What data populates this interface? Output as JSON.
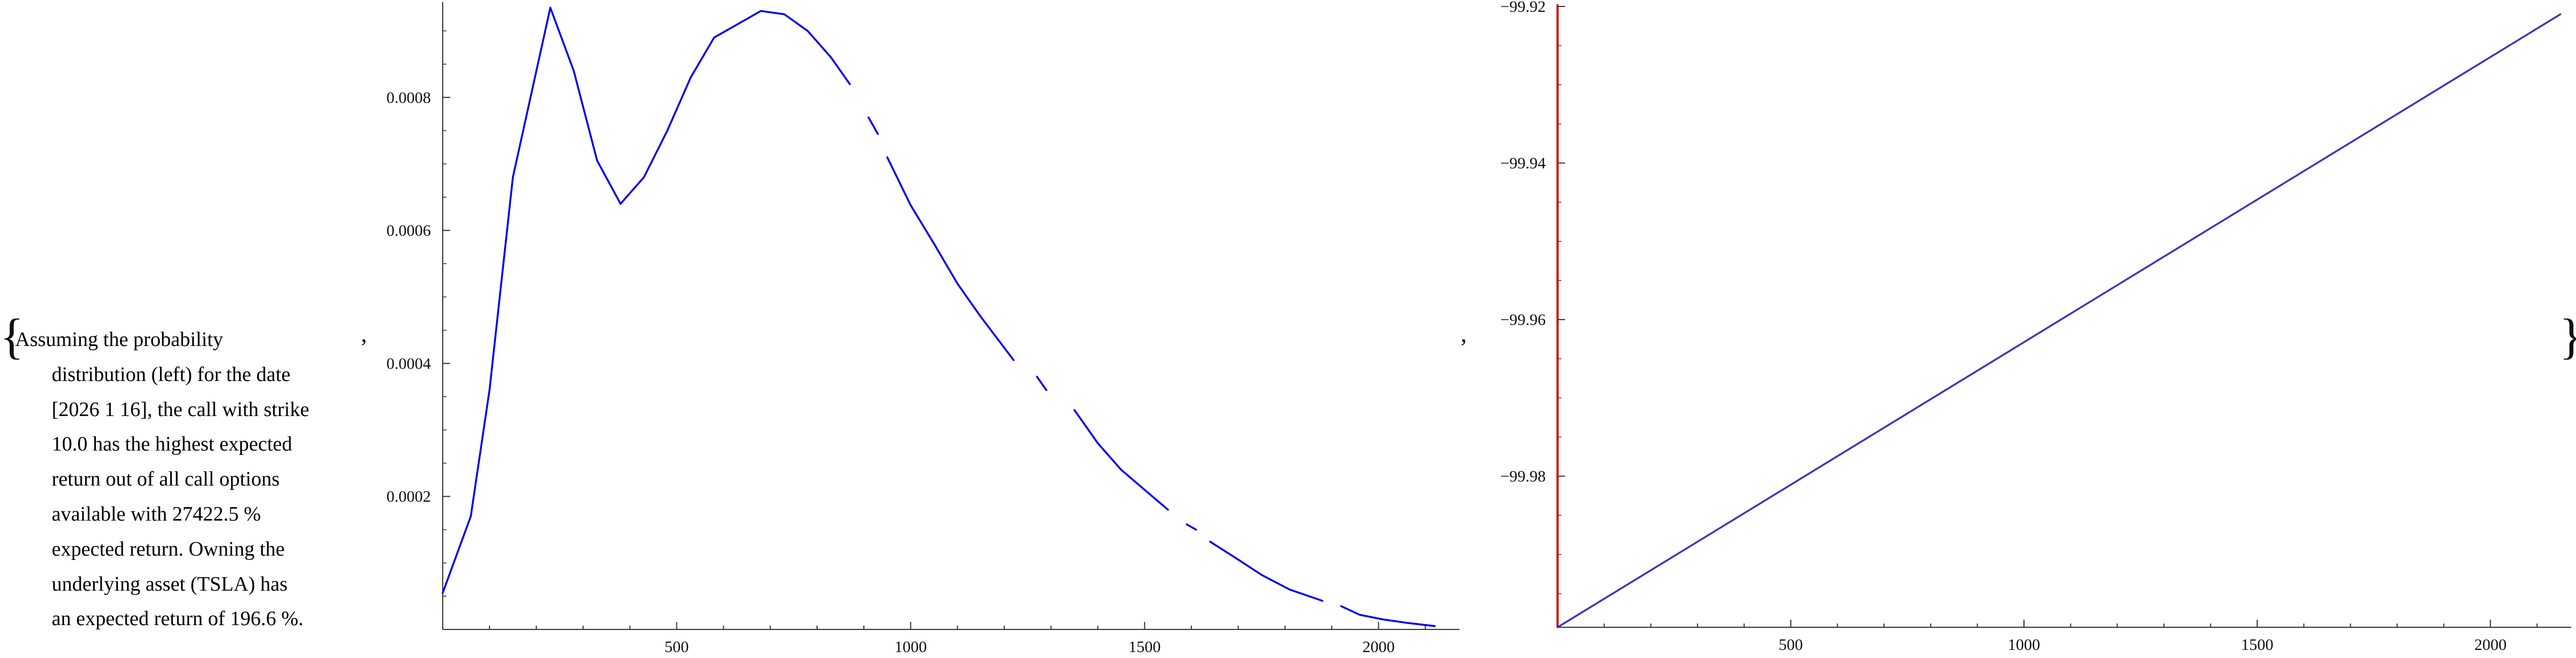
{
  "brace_open": "{",
  "brace_close": "}",
  "separator": ",",
  "description_lines": [
    "Assuming the probability",
    "distribution (left) for the date",
    "[2026 1 16], the call with strike",
    "10.0 has the highest expected",
    "return out of all call options",
    "available with 27422.5 %",
    "expected return. Owning the",
    "underlying asset (TSLA) has",
    "an expected return of 196.6 %."
  ],
  "chart_data": [
    {
      "type": "line",
      "title": "",
      "xlabel": "",
      "ylabel": "",
      "xlim": [
        0,
        2150
      ],
      "ylim": [
        0,
        0.00094
      ],
      "x_ticks": [
        500,
        1000,
        1500,
        2000
      ],
      "y_ticks": [
        0.0002,
        0.0004,
        0.0006,
        0.0008
      ],
      "x_tick_labels": [
        "500",
        "1000",
        "1500",
        "2000"
      ],
      "y_tick_labels": [
        "0.0002",
        "0.0004",
        "0.0006",
        "0.0008"
      ],
      "grid": false,
      "line_color": "#0000ee",
      "line_style": "solid with gaps (missing points)",
      "segments": [
        {
          "x": [
            0,
            60,
            100,
            150,
            230,
            280,
            330,
            380
          ],
          "y": [
            5.5e-05,
            0.00017,
            0.00036,
            0.00068,
            0.000935,
            0.00084,
            0.000705,
            0.00064
          ]
        },
        {
          "x": [
            380,
            430,
            480,
            530,
            580,
            630,
            680,
            730,
            780,
            830,
            870
          ],
          "y": [
            0.00064,
            0.00068,
            0.00075,
            0.00083,
            0.00089,
            0.00091,
            0.00093,
            0.000925,
            0.0009,
            0.00086,
            0.00082
          ]
        },
        {
          "x": [
            910,
            930
          ],
          "y": [
            0.00077,
            0.000745
          ]
        },
        {
          "x": [
            950,
            1000,
            1050,
            1100,
            1150,
            1220
          ],
          "y": [
            0.00071,
            0.000638,
            0.00058,
            0.00052,
            0.00047,
            0.000405
          ]
        },
        {
          "x": [
            1270,
            1290
          ],
          "y": [
            0.00038,
            0.00036
          ]
        },
        {
          "x": [
            1350,
            1400,
            1450,
            1500,
            1550
          ],
          "y": [
            0.00033,
            0.00028,
            0.00024,
            0.00021,
            0.00018
          ]
        },
        {
          "x": [
            1590,
            1610
          ],
          "y": [
            0.000158,
            0.00015
          ]
        },
        {
          "x": [
            1640,
            1700,
            1750,
            1810,
            1880
          ],
          "y": [
            0.000132,
            0.000105,
            8.2e-05,
            6e-05,
            4.3e-05
          ]
        },
        {
          "x": [
            1920,
            1960,
            2010,
            2060,
            2120
          ],
          "y": [
            3.5e-05,
            2.2e-05,
            1.5e-05,
            1e-05,
            5e-06
          ]
        }
      ]
    },
    {
      "type": "line",
      "title": "",
      "xlabel": "",
      "ylabel": "",
      "xlim": [
        0,
        2150
      ],
      "ylim": [
        -99.9993,
        -99.92
      ],
      "x_ticks": [
        500,
        1000,
        1500,
        2000
      ],
      "y_ticks": [
        -99.98,
        -99.96,
        -99.94,
        -99.92
      ],
      "x_tick_labels": [
        "500",
        "1000",
        "1500",
        "2000"
      ],
      "y_tick_labels": [
        "−99.98",
        "−99.96",
        "−99.94",
        "−99.92"
      ],
      "grid": false,
      "line_color": "#3a3ab8",
      "vertical_marker_color": "#cc0000",
      "vertical_marker_x": 0,
      "series": [
        {
          "x": [
            0,
            2150
          ],
          "y": [
            -99.9993,
            -99.921
          ]
        }
      ]
    }
  ]
}
